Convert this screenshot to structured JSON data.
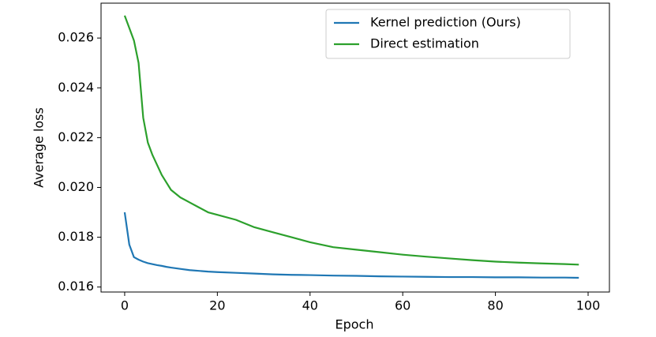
{
  "chart_data": {
    "type": "line",
    "xlabel": "Epoch",
    "ylabel": "Average loss",
    "x": [
      0,
      1,
      2,
      3,
      4,
      5,
      6,
      7,
      8,
      9,
      10,
      12,
      14,
      16,
      18,
      20,
      24,
      28,
      32,
      36,
      40,
      45,
      50,
      55,
      60,
      65,
      70,
      75,
      80,
      85,
      90,
      95,
      98
    ],
    "series": [
      {
        "name": "Kernel prediction (Ours)",
        "color": "#1f77b4",
        "values": [
          0.019,
          0.0177,
          0.0172,
          0.0171,
          0.01702,
          0.01696,
          0.01692,
          0.01688,
          0.01685,
          0.01681,
          0.01678,
          0.01673,
          0.01668,
          0.01665,
          0.01662,
          0.0166,
          0.01657,
          0.01654,
          0.01651,
          0.01649,
          0.01648,
          0.01646,
          0.01645,
          0.01643,
          0.01642,
          0.01641,
          0.0164,
          0.0164,
          0.01639,
          0.01639,
          0.01638,
          0.01638,
          0.01637
        ]
      },
      {
        "name": "Direct estimation",
        "color": "#2ca02c",
        "values": [
          0.0269,
          0.0264,
          0.0259,
          0.025,
          0.0228,
          0.0218,
          0.0213,
          0.0209,
          0.0205,
          0.0202,
          0.0199,
          0.0196,
          0.0194,
          0.0192,
          0.019,
          0.0189,
          0.0187,
          0.0184,
          0.0182,
          0.018,
          0.0178,
          0.0176,
          0.0175,
          0.0174,
          0.0173,
          0.01722,
          0.01715,
          0.01708,
          0.01702,
          0.01698,
          0.01695,
          0.01692,
          0.0169
        ]
      }
    ],
    "xlim": [
      -5.1,
      104.6
    ],
    "ylim": [
      0.0158,
      0.0274
    ],
    "xticks": [
      0,
      20,
      40,
      60,
      80,
      100
    ],
    "yticks": [
      0.016,
      0.018,
      {
        "value": 0.02,
        "label": "0.020"
      },
      0.022,
      0.024,
      0.026
    ],
    "legend": "upper-right"
  }
}
